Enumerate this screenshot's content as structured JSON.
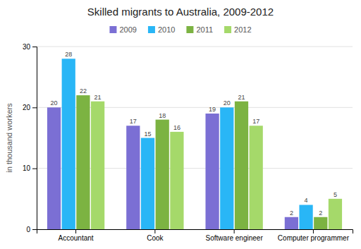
{
  "chart_data": {
    "type": "bar",
    "title": "Skilled migrants to Australia, 2009-2012",
    "categories": [
      "Accountant",
      "Cook",
      "Software engineer",
      "Computer programmer"
    ],
    "series": [
      {
        "name": "2009",
        "color": "#7B6FD4",
        "values": [
          20,
          17,
          19,
          2
        ]
      },
      {
        "name": "2010",
        "color": "#29B6F6",
        "values": [
          28,
          15,
          20,
          4
        ]
      },
      {
        "name": "2011",
        "color": "#7CB342",
        "values": [
          22,
          18,
          21,
          2
        ]
      },
      {
        "name": "2012",
        "color": "#A5D96A",
        "values": [
          21,
          16,
          17,
          5
        ]
      }
    ],
    "ylabel": "in thousand workers",
    "ylim": [
      0,
      30
    ],
    "yticks": [
      0,
      10,
      20,
      30
    ],
    "grid": true,
    "legend": "top",
    "data_labels": true
  }
}
